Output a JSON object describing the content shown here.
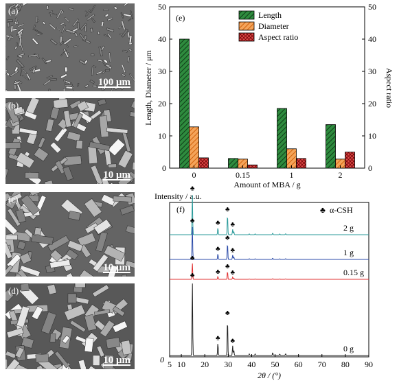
{
  "sem_panels": [
    {
      "label": "(a)",
      "scale": "100 μm",
      "tone": "#6a6a6a"
    },
    {
      "label": "(b)",
      "scale": "10 μm",
      "tone": "#5a5a5a"
    },
    {
      "label": "(c)",
      "scale": "10 μm",
      "tone": "#646464"
    },
    {
      "label": "(d)",
      "scale": "10 μm",
      "tone": "#585858"
    }
  ],
  "chart_data": [
    {
      "panel": "(e)",
      "type": "bar",
      "categories": [
        "0",
        "0.15",
        "1",
        "2"
      ],
      "xlabel": "Amount of MBA / g",
      "ylabel": "Length, Diameter / μm",
      "ylabel_right": "Aspect ratio",
      "ylim": [
        0,
        50
      ],
      "yticks": [
        "0",
        "10",
        "20",
        "30",
        "40",
        "50"
      ],
      "series": [
        {
          "name": "Length",
          "values": [
            40,
            3,
            18.5,
            13.5
          ],
          "color": "#2e8b3e",
          "pattern": "hatch-dark"
        },
        {
          "name": "Diameter",
          "values": [
            12.8,
            2.8,
            6,
            2.8
          ],
          "color": "#f08a2c",
          "pattern": "hatch-orange"
        },
        {
          "name": "Aspect ratio",
          "values": [
            3.2,
            1,
            3,
            5
          ],
          "color": "#d42a2a",
          "pattern": "cross-red"
        }
      ],
      "legend_position": "top-right"
    },
    {
      "panel": "(f)",
      "type": "line",
      "xlabel": "2θ / (°)",
      "ylabel": "Intensity / a.u.",
      "xlim": [
        5,
        90
      ],
      "xticks": [
        "5",
        "10",
        "20",
        "30",
        "40",
        "50",
        "60",
        "70",
        "80",
        "90"
      ],
      "origin_label": "0",
      "legend_text": "α-CSH",
      "legend_symbol": "♣",
      "marked_peaks": [
        14.7,
        25.6,
        29.7,
        31.9
      ],
      "series": [
        {
          "name": "2 g",
          "color": "#2a9a9a",
          "scale": 0.55
        },
        {
          "name": "1 g",
          "color": "#2a4aa8",
          "scale": 0.45
        },
        {
          "name": "0.15 g",
          "color": "#e03030",
          "scale": 0.22
        },
        {
          "name": "0 g",
          "color": "#222222",
          "scale": 1.0
        }
      ],
      "peaks": [
        {
          "x": 14.7,
          "h": 1.0
        },
        {
          "x": 25.6,
          "h": 0.17
        },
        {
          "x": 29.7,
          "h": 0.5
        },
        {
          "x": 31.9,
          "h": 0.13
        },
        {
          "x": 32.4,
          "h": 0.07
        },
        {
          "x": 39.0,
          "h": 0.02
        },
        {
          "x": 41.5,
          "h": 0.02
        },
        {
          "x": 49.0,
          "h": 0.04
        },
        {
          "x": 52.0,
          "h": 0.02
        },
        {
          "x": 54.5,
          "h": 0.025
        }
      ]
    }
  ]
}
